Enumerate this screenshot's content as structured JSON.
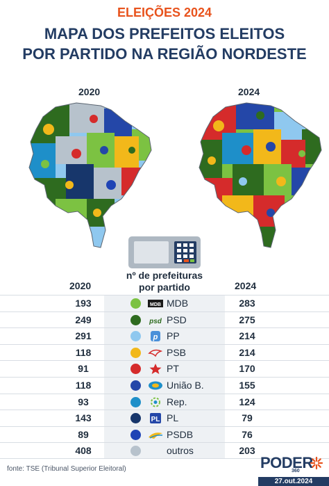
{
  "header": {
    "kicker": "ELEIÇÕES 2024",
    "title_line1": "MAPA DOS PREFEITOS ELEITOS",
    "title_line2": "POR PARTIDO NA REGIÃO NORDESTE"
  },
  "maps": {
    "left_year": "2020",
    "right_year": "2024"
  },
  "table": {
    "heading_line1": "nº de prefeituras",
    "heading_line2": "por partido",
    "col_2020": "2020",
    "col_2024": "2024",
    "rows": [
      {
        "party": "MDB",
        "v2020": "193",
        "v2024": "283",
        "color": "#7cc242",
        "logo_icon": "mdb-logo"
      },
      {
        "party": "PSD",
        "v2020": "249",
        "v2024": "275",
        "color": "#2e6b1f",
        "logo_icon": "psd-logo"
      },
      {
        "party": "PP",
        "v2020": "291",
        "v2024": "214",
        "color": "#8fc8ef",
        "logo_icon": "pp-logo"
      },
      {
        "party": "PSB",
        "v2020": "118",
        "v2024": "214",
        "color": "#f2b81a",
        "logo_icon": "psb-logo"
      },
      {
        "party": "PT",
        "v2020": "91",
        "v2024": "170",
        "color": "#d52b2b",
        "logo_icon": "pt-star-logo"
      },
      {
        "party": "União B.",
        "v2020": "118",
        "v2024": "155",
        "color": "#2447a8",
        "logo_icon": "uniao-logo"
      },
      {
        "party": "Rep.",
        "v2020": "93",
        "v2024": "124",
        "color": "#1e8fc9",
        "logo_icon": "republicanos-logo"
      },
      {
        "party": "PL",
        "v2020": "143",
        "v2024": "79",
        "color": "#17366b",
        "logo_icon": "pl-logo"
      },
      {
        "party": "PSDB",
        "v2020": "89",
        "v2024": "76",
        "color": "#1f44b5",
        "logo_icon": "psdb-logo"
      },
      {
        "party": "outros",
        "v2020": "408",
        "v2024": "203",
        "color": "#b7c2cc",
        "logo_icon": ""
      }
    ]
  },
  "footer": {
    "source": "fonte: TSE (Tribunal Superior Eleitoral)",
    "brand": "PODER",
    "brand_sub": "360",
    "date": "27.out.2024"
  },
  "colors": {
    "accent": "#e8531d",
    "navy": "#233c63"
  }
}
